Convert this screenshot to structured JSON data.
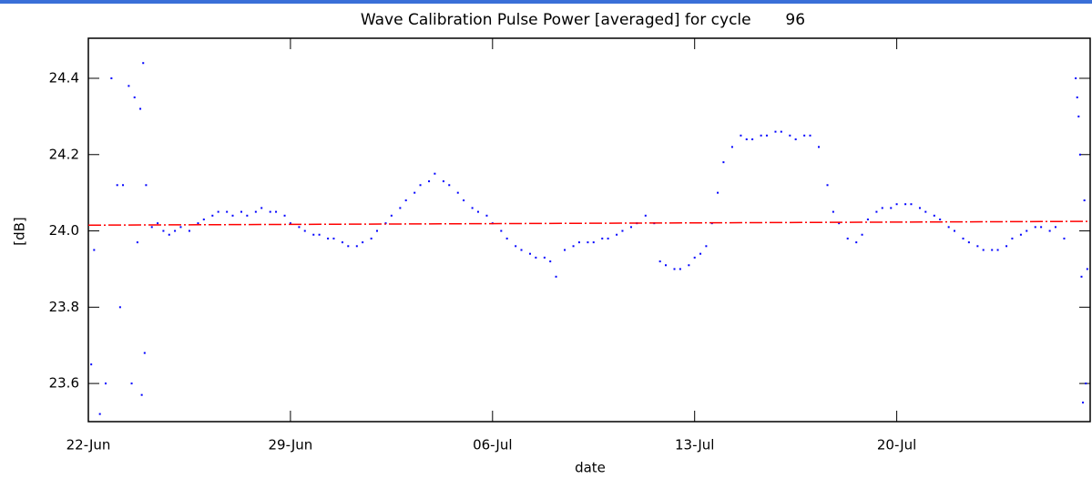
{
  "chart_data": {
    "type": "scatter",
    "title": "Wave Calibration Pulse Power [averaged] for cycle       96",
    "x_label": "date",
    "y_label": "[dB]",
    "xlim": [
      22,
      56.7
    ],
    "ylim": [
      23.5,
      24.505
    ],
    "xticks": [
      {
        "value": 22,
        "label": "22-Jun"
      },
      {
        "value": 29,
        "label": "29-Jun"
      },
      {
        "value": 36,
        "label": "06-Jul"
      },
      {
        "value": 43,
        "label": "13-Jul"
      },
      {
        "value": 50,
        "label": "20-Jul"
      }
    ],
    "yticks": [
      23.6,
      23.8,
      {
        "value": 24.0,
        "label": "24.0"
      },
      24.2,
      24.4
    ],
    "grid": false,
    "series": [
      {
        "color": "#0000ff",
        "x": [
          22.1,
          22.2,
          22.4,
          22.6,
          22.8,
          23.0,
          23.1,
          23.2,
          23.4,
          23.5,
          23.6,
          23.7,
          23.8,
          23.85,
          23.9,
          23.95,
          24.0,
          24.2,
          24.4,
          24.6,
          24.8,
          25.0,
          25.2,
          25.5,
          25.8,
          26.0,
          26.3,
          26.5,
          26.8,
          27.0,
          27.3,
          27.5,
          27.8,
          28.0,
          28.3,
          28.5,
          28.8,
          29.0,
          29.3,
          29.5,
          29.8,
          30.0,
          30.3,
          30.5,
          30.8,
          31.0,
          31.3,
          31.5,
          31.8,
          32.0,
          32.3,
          32.5,
          32.8,
          33.0,
          33.3,
          33.5,
          33.8,
          34.0,
          34.3,
          34.5,
          34.8,
          35.0,
          35.3,
          35.5,
          35.8,
          36.0,
          36.3,
          36.5,
          36.8,
          37.0,
          37.3,
          37.5,
          37.8,
          38.0,
          38.2,
          38.5,
          38.8,
          39.0,
          39.3,
          39.5,
          39.8,
          40.0,
          40.3,
          40.5,
          40.8,
          41.0,
          41.3,
          41.6,
          41.8,
          42.0,
          42.3,
          42.5,
          42.8,
          43.0,
          43.2,
          43.4,
          43.6,
          43.8,
          44.0,
          44.3,
          44.6,
          44.8,
          45.0,
          45.3,
          45.5,
          45.8,
          46.0,
          46.3,
          46.5,
          46.8,
          47.0,
          47.3,
          47.6,
          47.8,
          48.0,
          48.3,
          48.6,
          48.8,
          49.0,
          49.3,
          49.5,
          49.8,
          50.0,
          50.3,
          50.5,
          50.8,
          51.0,
          51.3,
          51.5,
          51.8,
          52.0,
          52.3,
          52.5,
          52.8,
          53.0,
          53.3,
          53.5,
          53.8,
          54.0,
          54.3,
          54.5,
          54.8,
          55.0,
          55.3,
          55.5,
          55.8,
          56.2,
          56.25,
          56.3,
          56.35,
          56.4,
          56.45,
          56.5,
          56.55,
          56.6
        ],
        "values": [
          23.65,
          23.95,
          23.52,
          23.6,
          24.4,
          24.12,
          23.8,
          24.12,
          24.38,
          23.6,
          24.35,
          23.97,
          24.32,
          23.57,
          24.44,
          23.68,
          24.12,
          24.01,
          24.02,
          24.0,
          23.99,
          24.0,
          24.01,
          24.0,
          24.02,
          24.03,
          24.04,
          24.05,
          24.05,
          24.04,
          24.05,
          24.04,
          24.05,
          24.06,
          24.05,
          24.05,
          24.04,
          24.02,
          24.01,
          24.0,
          23.99,
          23.99,
          23.98,
          23.98,
          23.97,
          23.96,
          23.96,
          23.97,
          23.98,
          24.0,
          24.02,
          24.04,
          24.06,
          24.08,
          24.1,
          24.12,
          24.13,
          24.15,
          24.13,
          24.12,
          24.1,
          24.08,
          24.06,
          24.05,
          24.04,
          24.02,
          24.0,
          23.98,
          23.96,
          23.95,
          23.94,
          23.93,
          23.93,
          23.92,
          23.88,
          23.95,
          23.96,
          23.97,
          23.97,
          23.97,
          23.98,
          23.98,
          23.99,
          24.0,
          24.01,
          24.02,
          24.04,
          24.02,
          23.92,
          23.91,
          23.9,
          23.9,
          23.91,
          23.93,
          23.94,
          23.96,
          24.02,
          24.1,
          24.18,
          24.22,
          24.25,
          24.24,
          24.24,
          24.25,
          24.25,
          24.26,
          24.26,
          24.25,
          24.24,
          24.25,
          24.25,
          24.22,
          24.12,
          24.05,
          24.02,
          23.98,
          23.97,
          23.99,
          24.03,
          24.05,
          24.06,
          24.06,
          24.07,
          24.07,
          24.07,
          24.06,
          24.05,
          24.04,
          24.03,
          24.01,
          24.0,
          23.98,
          23.97,
          23.96,
          23.95,
          23.95,
          23.95,
          23.96,
          23.98,
          23.99,
          24.0,
          24.01,
          24.01,
          24.0,
          24.01,
          23.98,
          24.4,
          24.35,
          24.3,
          24.2,
          23.88,
          23.55,
          24.08,
          23.6,
          23.9
        ]
      },
      {
        "color": "#ff0000",
        "line": true,
        "dash": "dashdot",
        "x": [
          22,
          56.7
        ],
        "values": [
          24.015,
          24.025
        ]
      }
    ]
  }
}
